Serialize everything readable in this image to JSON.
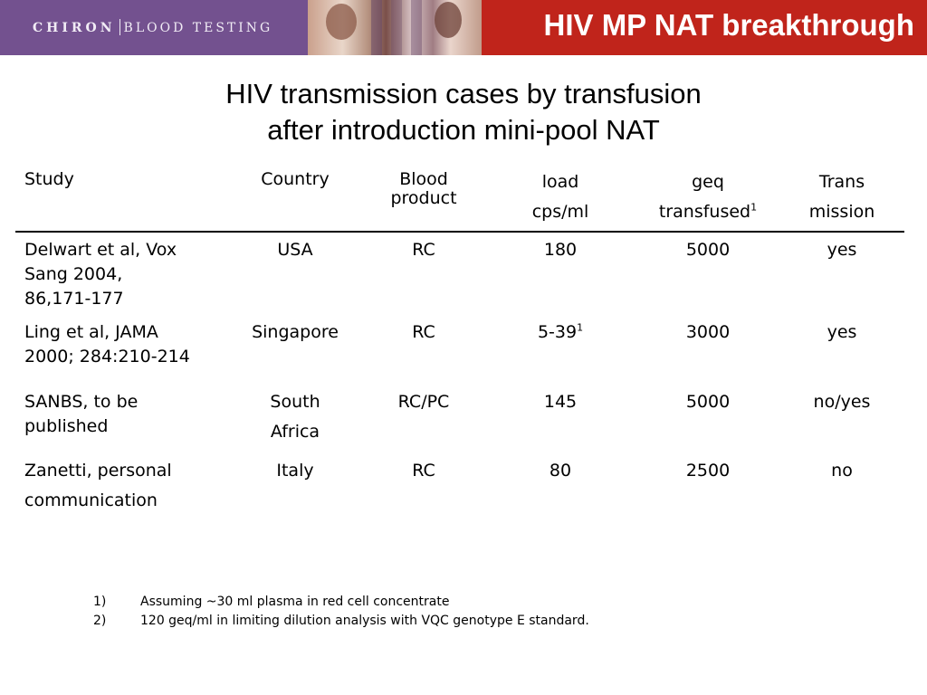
{
  "header": {
    "logo_brand": "CHIRON",
    "logo_division": "BLOOD TESTING",
    "title": "HIV MP NAT breakthrough",
    "colors": {
      "logo_bg": "#73518f",
      "title_bg": "#c0241b"
    }
  },
  "subtitle": {
    "line1": "HIV transmission cases by transfusion",
    "line2": "after introduction mini-pool NAT"
  },
  "table": {
    "columns": {
      "study": "Study",
      "country": "Country",
      "blood_line1": "Blood",
      "blood_line2": "product",
      "load_line1": "load",
      "load_line2": "cps/ml",
      "geq_line1": "geq",
      "geq_line2": "transfused",
      "geq_sup": "1",
      "trans_line1": "Trans",
      "trans_line2": "mission"
    },
    "rows": [
      {
        "study": [
          "Delwart et al, Vox",
          "Sang 2004,",
          "86,171-177"
        ],
        "country": [
          "USA"
        ],
        "blood": "RC",
        "load": "180",
        "load_sup": "",
        "geq": "5000",
        "trans": "yes"
      },
      {
        "study": [
          "Ling et al, JAMA",
          "2000; 284:210-214"
        ],
        "country": [
          "Singapore"
        ],
        "blood": "RC",
        "load": "5-39",
        "load_sup": "1",
        "geq": "3000",
        "trans": "yes"
      },
      {
        "study": [
          "SANBS, to be",
          "published"
        ],
        "country": [
          "South",
          "Africa"
        ],
        "blood": "RC/PC",
        "load": "145",
        "load_sup": "",
        "geq": "5000",
        "trans": "no/yes"
      },
      {
        "study": [
          "Zanetti, personal",
          "communication"
        ],
        "country": [
          "Italy"
        ],
        "blood": "RC",
        "load": "80",
        "load_sup": "",
        "geq": "2500",
        "trans": "no"
      }
    ]
  },
  "footnotes": [
    {
      "num": "1)",
      "text": "Assuming ~30 ml plasma in red cell concentrate"
    },
    {
      "num": "2)",
      "text": "120 geq/ml in limiting dilution analysis with VQC genotype E standard."
    }
  ]
}
